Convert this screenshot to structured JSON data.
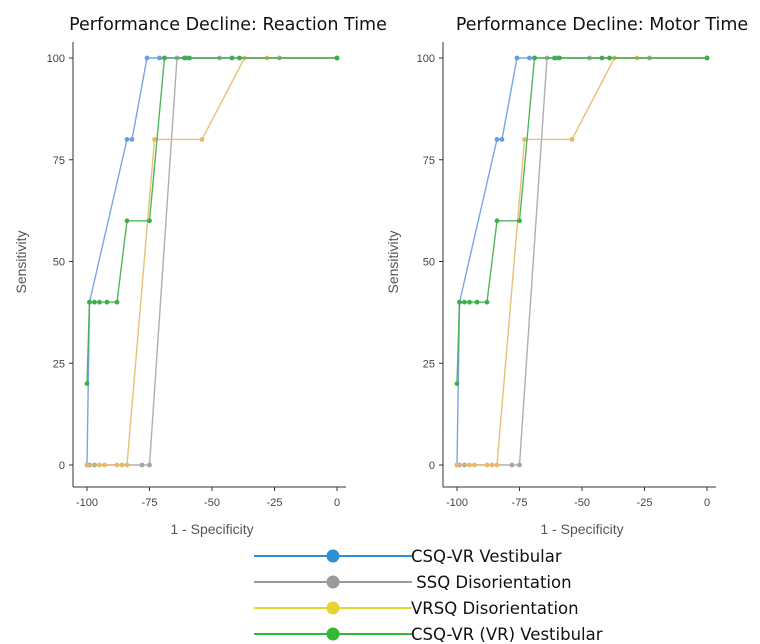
{
  "chart_data": [
    {
      "type": "line",
      "title": "Performance Decline: Reaction Time",
      "xlabel": "1 - Specificity",
      "ylabel": "Sensitivity",
      "xlim": [
        -100,
        0
      ],
      "ylim": [
        0,
        100
      ],
      "xticks": [
        -100,
        -75,
        -50,
        -25,
        0
      ],
      "yticks": [
        0,
        25,
        50,
        75,
        100
      ],
      "grid": false,
      "series": [
        {
          "name": "CSQ-VR Vestibular",
          "color": "#6a9be5",
          "points": [
            [
              -100,
              0
            ],
            [
              -99,
              40
            ],
            [
              -84,
              80
            ],
            [
              -82,
              80
            ],
            [
              -76,
              100
            ],
            [
              -71,
              100
            ],
            [
              -69,
              100
            ],
            [
              -60,
              100
            ],
            [
              0,
              100
            ]
          ]
        },
        {
          "name": "SSQ Disorientation",
          "color": "#a6a6a6",
          "points": [
            [
              -100,
              0
            ],
            [
              -99,
              0
            ],
            [
              -97,
              0
            ],
            [
              -78,
              0
            ],
            [
              -75,
              0
            ],
            [
              -64,
              100
            ],
            [
              -47,
              100
            ],
            [
              -23,
              100
            ],
            [
              0,
              100
            ]
          ]
        },
        {
          "name": "VRSQ Disorientation",
          "color": "#e8b96a",
          "points": [
            [
              -100,
              0
            ],
            [
              -95,
              0
            ],
            [
              -93,
              0
            ],
            [
              -88,
              0
            ],
            [
              -86,
              0
            ],
            [
              -84,
              0
            ],
            [
              -73,
              80
            ],
            [
              -54,
              80
            ],
            [
              -37,
              100
            ],
            [
              -28,
              100
            ],
            [
              0,
              100
            ]
          ]
        },
        {
          "name": "CSQ-VR (VR) Vestibular",
          "color": "#3fae4a",
          "points": [
            [
              -100,
              20
            ],
            [
              -99,
              40
            ],
            [
              -97,
              40
            ],
            [
              -95,
              40
            ],
            [
              -92,
              40
            ],
            [
              -88,
              40
            ],
            [
              -84,
              60
            ],
            [
              -75,
              60
            ],
            [
              -69,
              100
            ],
            [
              -61,
              100
            ],
            [
              -59,
              100
            ],
            [
              -42,
              100
            ],
            [
              -39,
              100
            ],
            [
              0,
              100
            ]
          ]
        }
      ]
    },
    {
      "type": "line",
      "title": "Performance Decline: Motor Time",
      "xlabel": "1 - Specificity",
      "ylabel": "Sensitivity",
      "xlim": [
        -100,
        0
      ],
      "ylim": [
        0,
        100
      ],
      "xticks": [
        -100,
        -75,
        -50,
        -25,
        0
      ],
      "yticks": [
        0,
        25,
        50,
        75,
        100
      ],
      "grid": false,
      "series": [
        {
          "name": "CSQ-VR Vestibular",
          "color": "#6a9be5",
          "points": [
            [
              -100,
              0
            ],
            [
              -99,
              40
            ],
            [
              -84,
              80
            ],
            [
              -82,
              80
            ],
            [
              -76,
              100
            ],
            [
              -71,
              100
            ],
            [
              -69,
              100
            ],
            [
              -60,
              100
            ],
            [
              0,
              100
            ]
          ]
        },
        {
          "name": "SSQ Disorientation",
          "color": "#a6a6a6",
          "points": [
            [
              -100,
              0
            ],
            [
              -99,
              0
            ],
            [
              -97,
              0
            ],
            [
              -78,
              0
            ],
            [
              -75,
              0
            ],
            [
              -64,
              100
            ],
            [
              -47,
              100
            ],
            [
              -23,
              100
            ],
            [
              0,
              100
            ]
          ]
        },
        {
          "name": "VRSQ Disorientation",
          "color": "#e8b96a",
          "points": [
            [
              -100,
              0
            ],
            [
              -95,
              0
            ],
            [
              -93,
              0
            ],
            [
              -88,
              0
            ],
            [
              -86,
              0
            ],
            [
              -84,
              0
            ],
            [
              -73,
              80
            ],
            [
              -54,
              80
            ],
            [
              -37,
              100
            ],
            [
              -28,
              100
            ],
            [
              0,
              100
            ]
          ]
        },
        {
          "name": "CSQ-VR (VR) Vestibular",
          "color": "#3fae4a",
          "points": [
            [
              -100,
              20
            ],
            [
              -99,
              40
            ],
            [
              -97,
              40
            ],
            [
              -95,
              40
            ],
            [
              -92,
              40
            ],
            [
              -88,
              40
            ],
            [
              -84,
              60
            ],
            [
              -75,
              60
            ],
            [
              -69,
              100
            ],
            [
              -61,
              100
            ],
            [
              -59,
              100
            ],
            [
              -42,
              100
            ],
            [
              -39,
              100
            ],
            [
              0,
              100
            ]
          ]
        }
      ]
    }
  ],
  "legend": {
    "placement": "bottom-center",
    "items": [
      {
        "label": "CSQ-VR Vestibular",
        "color": "#2e8fd6"
      },
      {
        "label": " SSQ Disorientation",
        "color": "#9a9a9a"
      },
      {
        "label": "VRSQ Disorientation",
        "color": "#e6d430"
      },
      {
        "label": "CSQ-VR (VR) Vestibular",
        "color": "#33b833"
      }
    ]
  }
}
